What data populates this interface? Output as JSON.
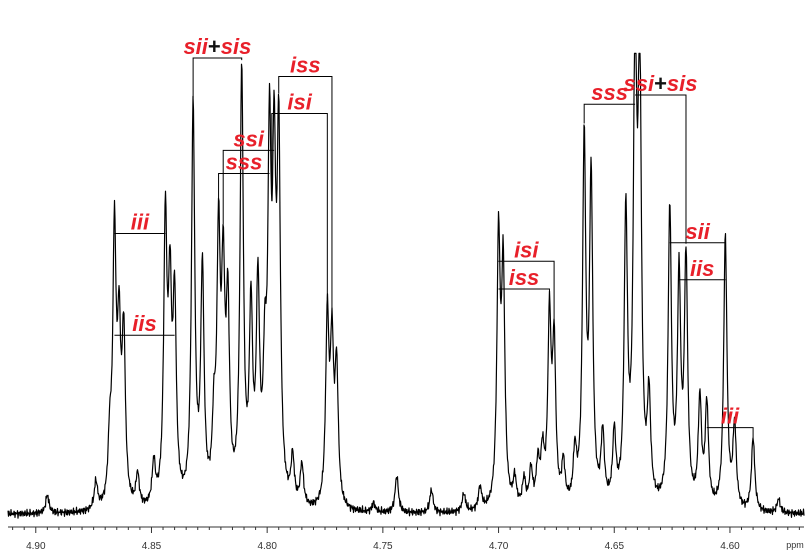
{
  "colors": {
    "label": "#e8202a",
    "plus": "#111111",
    "spectrum": "#000000",
    "bracket": "#000000",
    "axis": "#333333"
  },
  "chart_data": {
    "type": "line",
    "title": "",
    "xlabel": "ppm",
    "ylabel": "",
    "xlim": [
      4.912,
      4.568
    ],
    "ylim": [
      0,
      100
    ],
    "x_ticks": [
      "4.90",
      "4.85",
      "4.80",
      "4.75",
      "4.70",
      "4.65",
      "4.60"
    ],
    "grid": false,
    "peaks": [
      [
        4.895,
        4
      ],
      [
        4.874,
        6
      ],
      [
        4.868,
        13
      ],
      [
        4.866,
        58
      ],
      [
        4.864,
        34
      ],
      [
        4.862,
        36
      ],
      [
        4.856,
        7
      ],
      [
        4.849,
        9
      ],
      [
        4.844,
        60
      ],
      [
        4.842,
        42
      ],
      [
        4.84,
        42
      ],
      [
        4.832,
        86
      ],
      [
        4.828,
        50
      ],
      [
        4.823,
        15
      ],
      [
        4.821,
        55
      ],
      [
        4.819,
        45
      ],
      [
        4.817,
        40
      ],
      [
        4.811,
        93
      ],
      [
        4.807,
        40
      ],
      [
        4.804,
        45
      ],
      [
        4.801,
        25
      ],
      [
        4.799,
        73
      ],
      [
        4.797,
        66
      ],
      [
        4.795,
        76
      ],
      [
        4.789,
        10
      ],
      [
        4.785,
        9
      ],
      [
        4.774,
        40
      ],
      [
        4.772,
        33
      ],
      [
        4.77,
        29
      ],
      [
        4.754,
        2
      ],
      [
        4.744,
        8
      ],
      [
        4.729,
        5
      ],
      [
        4.715,
        4
      ],
      [
        4.708,
        5
      ],
      [
        4.7,
        57
      ],
      [
        4.698,
        50
      ],
      [
        4.693,
        6
      ],
      [
        4.689,
        6
      ],
      [
        4.686,
        8
      ],
      [
        4.683,
        9
      ],
      [
        4.681,
        11
      ],
      [
        4.678,
        40
      ],
      [
        4.676,
        34
      ],
      [
        4.672,
        9
      ],
      [
        4.667,
        11
      ],
      [
        4.663,
        78
      ],
      [
        4.66,
        70
      ],
      [
        4.655,
        15
      ],
      [
        4.65,
        15
      ],
      [
        4.645,
        62
      ],
      [
        4.641,
        99
      ],
      [
        4.639,
        93
      ],
      [
        4.635,
        22
      ],
      [
        4.626,
        64
      ],
      [
        4.622,
        48
      ],
      [
        4.619,
        53
      ],
      [
        4.613,
        23
      ],
      [
        4.61,
        22
      ],
      [
        4.602,
        59
      ],
      [
        4.598,
        18
      ],
      [
        4.59,
        16
      ],
      [
        4.579,
        3
      ]
    ],
    "series": [
      {
        "values_note_free": true,
        "points": []
      }
    ],
    "annotations": [
      {
        "label": "iii",
        "parts": [
          "iii"
        ],
        "x1": 4.866,
        "x2": 4.844,
        "y": 62
      },
      {
        "label": "iis",
        "parts": [
          "iis"
        ],
        "x1": 4.866,
        "x2": 4.84,
        "y": 40
      },
      {
        "label": "sii+sis",
        "parts": [
          "sii",
          "+",
          "sis"
        ],
        "x1": 4.832,
        "x2": 4.811,
        "y": 100
      },
      {
        "label": "ssi",
        "parts": [
          "ssi"
        ],
        "x1": 4.819,
        "x2": 4.797,
        "y": 80
      },
      {
        "label": "sss",
        "parts": [
          "sss"
        ],
        "x1": 4.821,
        "x2": 4.799,
        "y": 75
      },
      {
        "label": "iss",
        "parts": [
          "iss"
        ],
        "x1": 4.795,
        "x2": 4.772,
        "y": 96
      },
      {
        "label": "isi",
        "parts": [
          "isi"
        ],
        "x1": 4.798,
        "x2": 4.774,
        "y": 88
      },
      {
        "label": "isi",
        "parts": [
          "isi"
        ],
        "x1": 4.7,
        "x2": 4.676,
        "y": 56
      },
      {
        "label": "iss",
        "parts": [
          "iss"
        ],
        "x1": 4.7,
        "x2": 4.678,
        "y": 50
      },
      {
        "label": "sss",
        "parts": [
          "sss"
        ],
        "x1": 4.663,
        "x2": 4.641,
        "y": 90
      },
      {
        "label": "ssi+sis",
        "parts": [
          "ssi",
          "+",
          "sis"
        ],
        "x1": 4.641,
        "x2": 4.619,
        "y": 92
      },
      {
        "label": "sii",
        "parts": [
          "sii"
        ],
        "x1": 4.626,
        "x2": 4.602,
        "y": 60
      },
      {
        "label": "iis",
        "parts": [
          "iis"
        ],
        "x1": 4.622,
        "x2": 4.602,
        "y": 52
      },
      {
        "label": "iii",
        "parts": [
          "iii"
        ],
        "x1": 4.61,
        "x2": 4.59,
        "y": 20
      }
    ]
  }
}
